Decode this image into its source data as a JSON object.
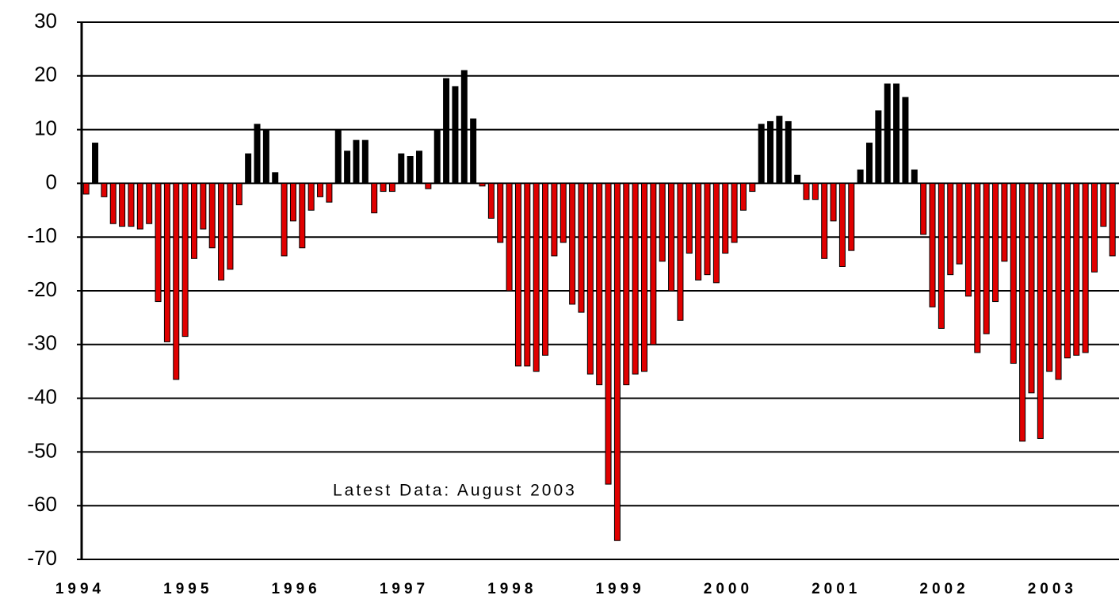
{
  "chart_data": {
    "type": "bar",
    "annotation": "Latest Data:  August 2003",
    "categories": [
      "1994",
      null,
      null,
      null,
      null,
      null,
      null,
      null,
      null,
      null,
      null,
      null,
      "1995",
      null,
      null,
      null,
      null,
      null,
      null,
      null,
      null,
      null,
      null,
      null,
      "1996",
      null,
      null,
      null,
      null,
      null,
      null,
      null,
      null,
      null,
      null,
      null,
      "1997",
      null,
      null,
      null,
      null,
      null,
      null,
      null,
      null,
      null,
      null,
      null,
      "1998",
      null,
      null,
      null,
      null,
      null,
      null,
      null,
      null,
      null,
      null,
      null,
      "1999",
      null,
      null,
      null,
      null,
      null,
      null,
      null,
      null,
      null,
      null,
      null,
      "2000",
      null,
      null,
      null,
      null,
      null,
      null,
      null,
      null,
      null,
      null,
      null,
      "2001",
      null,
      null,
      null,
      null,
      null,
      null,
      null,
      null,
      null,
      null,
      null,
      "2002",
      null,
      null,
      null,
      null,
      null,
      null,
      null,
      null,
      null,
      null,
      null,
      "2003",
      null,
      null,
      null,
      null,
      null,
      null
    ],
    "values": [
      -2,
      7.5,
      -2.5,
      -7.5,
      -8,
      -8,
      -8.5,
      -7.5,
      -22,
      -29.5,
      -36.5,
      -28.5,
      -14,
      -8.5,
      -12,
      -18,
      -16,
      -4,
      5.5,
      11,
      10,
      2,
      -13.5,
      -7,
      -12,
      -5,
      -2.5,
      -3.5,
      10,
      6,
      8,
      8,
      -5.5,
      -1.5,
      -1.5,
      5.5,
      5,
      6,
      -1,
      10,
      19.5,
      18,
      21,
      12,
      -0.5,
      -6.5,
      -11,
      -20,
      -34,
      -34,
      -35,
      -32,
      -13.5,
      -11,
      -22.5,
      -24,
      -35.5,
      -37.5,
      -56,
      -66.5,
      -37.5,
      -35.5,
      -35,
      -30,
      -14.5,
      -20,
      -25.5,
      -13,
      -18,
      -17,
      -18.5,
      -13,
      -11,
      -5,
      -1.5,
      11,
      11.5,
      12.5,
      11.5,
      1.5,
      -3,
      -3,
      -14,
      -7,
      -15.5,
      -12.5,
      2.5,
      7.5,
      13.5,
      18.5,
      18.5,
      16,
      2.5,
      -9.5,
      -23,
      -27,
      -17,
      -15,
      -21,
      -31.5,
      -28,
      -22,
      -14.5,
      -33.5,
      -48,
      -39,
      -47.5,
      -35,
      -36.5,
      -32.5,
      -32,
      -31.5,
      -16.5,
      -8,
      -13.5
    ],
    "color": "#000000",
    "negative_color": "#e00000",
    "ylim": [
      -70,
      30
    ],
    "yticks": [
      -70,
      -60,
      -50,
      -40,
      -30,
      -20,
      -10,
      0,
      10,
      20,
      30
    ],
    "grid": true
  }
}
